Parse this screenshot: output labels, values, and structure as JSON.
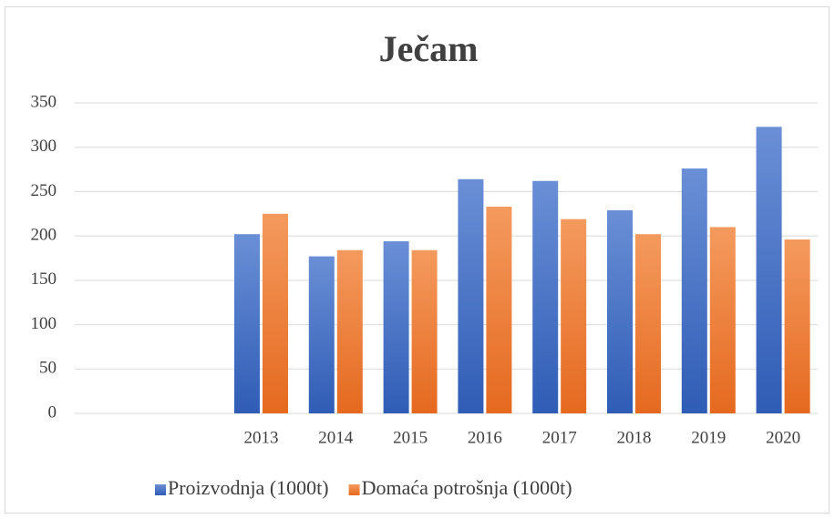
{
  "chart_data": {
    "type": "bar",
    "title": "Ječam",
    "categories": [
      null,
      null,
      "2013",
      "2014",
      "2015",
      "2016",
      "2017",
      "2018",
      "2019",
      "2020"
    ],
    "series": [
      {
        "name": "Proizvodnja (1000t)",
        "color": "#4472c4",
        "values": [
          null,
          null,
          202,
          177,
          194,
          264,
          262,
          229,
          276,
          323
        ]
      },
      {
        "name": "Domaća potrošnja (1000t)",
        "color": "#ed7d31",
        "values": [
          null,
          null,
          225,
          184,
          184,
          233,
          219,
          202,
          210,
          196
        ]
      }
    ],
    "ylim": [
      0,
      350
    ],
    "yticks": [
      0,
      50,
      100,
      150,
      200,
      250,
      300,
      350
    ],
    "grid": true,
    "legend": "bottom"
  }
}
